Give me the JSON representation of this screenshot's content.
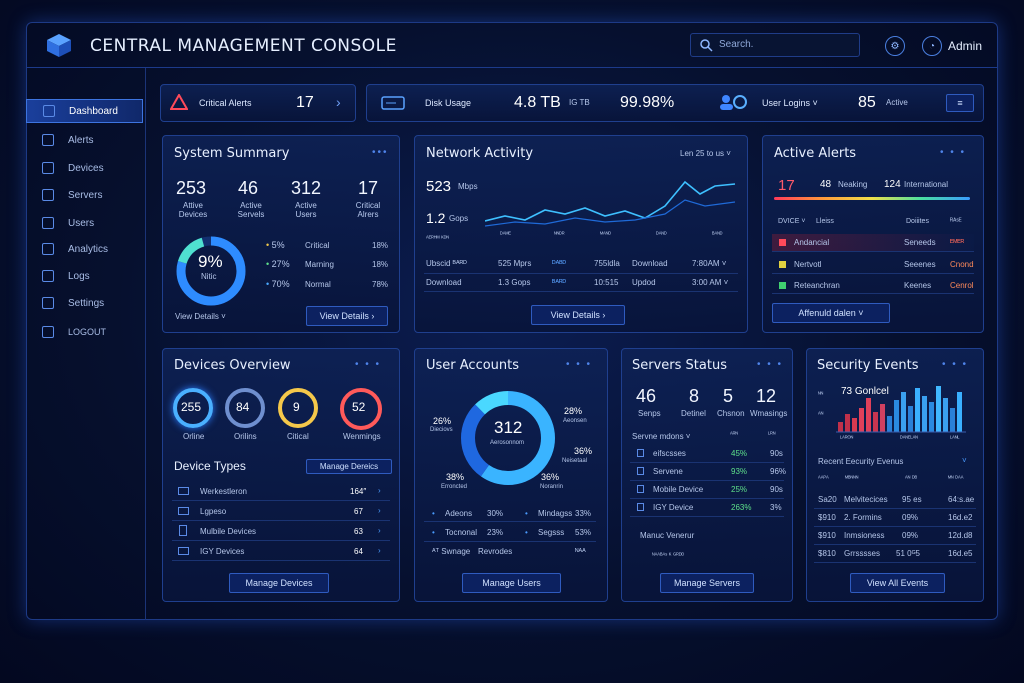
{
  "app": {
    "title": "CENTRAL MANAGEMENT CONSOLE",
    "search_placeholder": "Search.",
    "user": "Admin"
  },
  "sidebar": {
    "items": [
      {
        "label": "Dashboard",
        "icon": "dashboard-icon"
      },
      {
        "label": "Alerts",
        "icon": "bell-icon"
      },
      {
        "label": "Devices",
        "icon": "monitor-icon"
      },
      {
        "label": "Servers",
        "icon": "server-icon"
      },
      {
        "label": "Users",
        "icon": "user-icon"
      },
      {
        "label": "Analytics",
        "icon": "chart-icon"
      },
      {
        "label": "Logs",
        "icon": "log-icon"
      },
      {
        "label": "Settings",
        "icon": "gear-icon"
      },
      {
        "label": "LOGOUT",
        "icon": "logout-icon"
      }
    ]
  },
  "stats": {
    "critical": {
      "label": "Critical Alerts",
      "value": "17",
      "chevron": "›"
    },
    "disk": {
      "label": "Disk Usage",
      "value": "4.8 TB",
      "unit": "IG TB",
      "pct": "99.98%"
    },
    "logins": {
      "label": "User Logins",
      "value": "85",
      "state": "Active",
      "menu": "≡"
    }
  },
  "summary": {
    "title": "System Summary",
    "dots": "•••",
    "kpis": [
      {
        "v": "253",
        "l": "Attive Devices"
      },
      {
        "v": "46",
        "l": "Active Servels"
      },
      {
        "v": "312",
        "l": "Active Users"
      },
      {
        "v": "17",
        "l": "Critical Alrers"
      }
    ],
    "donut": {
      "value": "9%",
      "label": "Nitic"
    },
    "legend": [
      {
        "pct": "5%",
        "name": "Critical",
        "v": "18%"
      },
      {
        "pct": "27%",
        "name": "Marning",
        "v": "18%"
      },
      {
        "pct": "70%",
        "name": "Normal",
        "v": "78%"
      }
    ],
    "details": "View Details ˅",
    "button": "View Details"
  },
  "network": {
    "title": "Network Activity",
    "range": "Len  25 to us ˅",
    "val1": "523",
    "unit1": "Mbps",
    "val2": "1.2",
    "unit2": "Gops",
    "axis": "ᴬᴱᴿᴴᴹ ᴷᴰᴺ",
    "axis_labels": [
      "ᴰᴬᴹᴱ",
      "ᴺᴺᴰᴿ",
      "ᴹᴬᴺᴰ",
      "ᴰᴬᴺᴰ",
      "ᴮᴬᴺᴰ"
    ],
    "rows": [
      [
        "Ubscid ᴮᴬᴿᴰ",
        "525 Mprs",
        "ᴰᴬᴮᴰ",
        "755ldla",
        "Download",
        "7:80AM ˅"
      ],
      [
        "Download",
        "1.3 Gops",
        "ᴮᴬᴿᴰ",
        "10:515",
        "Updod",
        "3:00 AM ˅"
      ]
    ],
    "button": "View Details ›"
  },
  "alerts": {
    "title": "Active Alerts",
    "dots": "• • •",
    "counts": [
      {
        "v": "17",
        "c": "#ff5a6a"
      },
      {
        "v": "48",
        "l": "Neaking"
      },
      {
        "v": "124",
        "l": "International"
      }
    ],
    "head": [
      "DVICE ˅",
      "Lleiss",
      "Doiiites",
      "ᴿᴬˢᴱ"
    ],
    "rows": [
      [
        "Andancial",
        "Seneeds",
        "ᴱᴹᴱᴿ"
      ],
      [
        "Nertvotl",
        "Seeenes",
        "Cnond"
      ],
      [
        "Reteanchran",
        "Keenes",
        "Cenrol"
      ]
    ],
    "button": "Affenuld dalen ˅"
  },
  "devices": {
    "title": "Devices Overview",
    "dots": "• • •",
    "rings": [
      {
        "v": "255",
        "l": "Orline",
        "c": "#4ab0ff"
      },
      {
        "v": "84",
        "l": "Orilins",
        "c": "#6f8fcf"
      },
      {
        "v": "9",
        "l": "Citical",
        "c": "#f5c84a"
      },
      {
        "v": "52",
        "l": "Wenmings",
        "c": "#ff5a5a"
      }
    ],
    "types_title": "Device Types",
    "manage_link": "Manage Dereics",
    "types": [
      {
        "n": "Werkestleron",
        "v": "164″"
      },
      {
        "n": "Lgpeso",
        "v": "67"
      },
      {
        "n": "Mulbile Devices",
        "v": "63"
      },
      {
        "n": "IGY Devices",
        "v": "64"
      }
    ],
    "button": "Manage Devices"
  },
  "users": {
    "title": "User Accounts",
    "dots": "• • •",
    "total": "312",
    "total_label": "Aerosonnom",
    "segs": [
      {
        "p": "26%",
        "l": "Dieciovs"
      },
      {
        "p": "28%",
        "l": "Aeonsen"
      },
      {
        "p": "36%",
        "l": "Neisetaal"
      },
      {
        "p": "38%",
        "l": "Erroncted"
      },
      {
        "p": "36%",
        "l": "Noranrin"
      }
    ],
    "rows": [
      [
        "Adeons",
        "30%",
        "Mindagss",
        "33%"
      ],
      [
        "Tocnonal",
        "23%",
        "Segsss",
        "53%"
      ],
      [
        "ᴬᵀ Swnage",
        "Revrodes",
        "",
        "ᴺᴬᴬ"
      ]
    ],
    "button": "Manage Users"
  },
  "servers": {
    "title": "Servers Status",
    "dots": "• • •",
    "kpis": [
      {
        "v": "46",
        "l": "Senps"
      },
      {
        "v": "8",
        "l": "Detinel"
      },
      {
        "v": "5",
        "l": "Chsnon"
      },
      {
        "v": "12",
        "l": "Wmasings"
      }
    ],
    "head": [
      "Servne mdons ˅",
      "ᴬᴿᴺ",
      "ᴸᴿᴺ"
    ],
    "rows": [
      [
        "eifscsses",
        "45%",
        "90s"
      ],
      [
        "Servene",
        "93%",
        "96%"
      ],
      [
        "Mobile Device",
        "25%",
        "90s"
      ],
      [
        "IGY Device",
        "263%",
        "3%"
      ]
    ],
    "foot": "Manuc Venerur",
    "foot2": "ᴺᴬᴬᴮᴬˢ  ᴷ ᴳᴿᴰᴰ",
    "button": "Manage Servers"
  },
  "security": {
    "title": "Security Events",
    "dots": "• • •",
    "chart_title": "73 Gonlcel",
    "yl": [
      "ᴺᴺ",
      "ᴬᴺ",
      "ᴹᴺ"
    ],
    "xlabels": [
      "ᴸᴬᴿᴼᴺ",
      "ᴰᴬᴺᴱᴸᴬᴺ",
      "ᴸᴬᴺᴸ"
    ],
    "recent": "Recent Eecurity Evenus",
    "rows": [
      [
        "ᴬᴬᴾᴬ",
        "ᴹᴮᴺᴺᴺ",
        "ᴬᴺ ᴰᴮ",
        "ᴹᴺ ᴰᴬᴬ"
      ],
      [
        "Sa20",
        "Melvitecices",
        "95 es",
        "64:s.ae"
      ],
      [
        "$910",
        "2. Formins",
        "09%",
        "16d.e2"
      ],
      [
        "$910",
        "Inmsioness",
        "09%",
        "12d.d8"
      ],
      [
        "$810",
        "Grrsssses",
        "51 0ᴳ5",
        "16d.e5"
      ]
    ],
    "button": "View All Events"
  }
}
